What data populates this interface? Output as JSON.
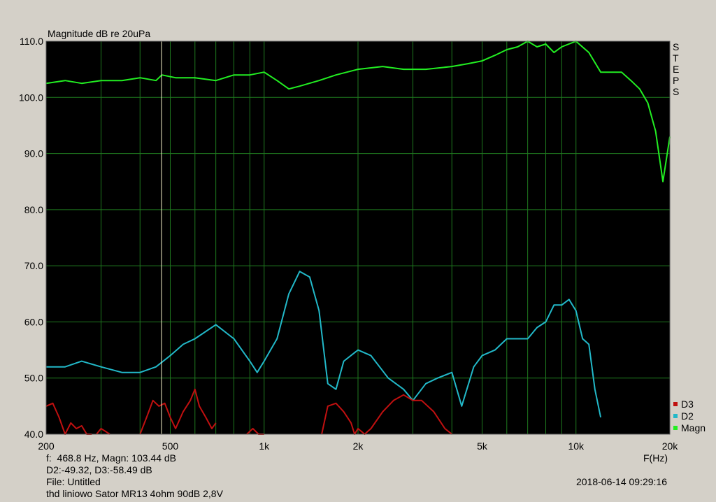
{
  "chart_data": {
    "type": "line",
    "title": "Magnitude dB re 20uPa",
    "xlabel": "F(Hz)",
    "x_scale": "log",
    "xlim": [
      200,
      20000
    ],
    "ylim": [
      40,
      110
    ],
    "x_ticks": [
      200,
      500,
      1000,
      2000,
      5000,
      10000,
      20000
    ],
    "x_tick_labels": [
      "200",
      "500",
      "1k",
      "2k",
      "5k",
      "10k",
      "20k"
    ],
    "y_ticks": [
      40,
      50,
      60,
      70,
      80,
      90,
      100,
      110
    ],
    "y_tick_labels": [
      "40.0",
      "50.0",
      "60.0",
      "70.0",
      "80.0",
      "90.0",
      "100.0",
      "110.0"
    ],
    "grid": true,
    "legend_position": "bottom-right",
    "cursor_x": 468.8,
    "series": [
      {
        "name": "Magn",
        "color": "#22ee22",
        "x": [
          200,
          230,
          260,
          300,
          350,
          400,
          450,
          470,
          520,
          600,
          700,
          800,
          900,
          1000,
          1100,
          1200,
          1300,
          1500,
          1700,
          2000,
          2400,
          2800,
          3300,
          4000,
          4500,
          5000,
          5500,
          6000,
          6500,
          7000,
          7500,
          8000,
          8500,
          9000,
          10000,
          11000,
          12000,
          13000,
          14000,
          15000,
          16000,
          17000,
          18000,
          19000,
          20000
        ],
        "y": [
          102.5,
          103,
          102.5,
          103,
          103,
          103.5,
          103,
          104,
          103.5,
          103.5,
          103,
          104,
          104,
          104.5,
          103,
          101.5,
          102,
          103,
          104,
          105,
          105.5,
          105,
          105,
          105.5,
          106,
          106.5,
          107.5,
          108.5,
          109,
          110,
          109,
          109.5,
          108,
          109,
          110,
          108,
          104.5,
          104.5,
          104.5,
          103,
          101.5,
          99,
          94,
          85,
          93
        ]
      },
      {
        "name": "D2",
        "color": "#22b8c8",
        "x": [
          200,
          230,
          260,
          300,
          350,
          400,
          450,
          500,
          550,
          600,
          700,
          800,
          900,
          950,
          1000,
          1100,
          1200,
          1300,
          1400,
          1500,
          1600,
          1700,
          1800,
          2000,
          2200,
          2500,
          2800,
          3000,
          3300,
          3600,
          4000,
          4300,
          4700,
          5000,
          5500,
          6000,
          6500,
          7000,
          7500,
          8000,
          8500,
          9000,
          9500,
          10000,
          10500,
          11000,
          11500,
          12000
        ],
        "y": [
          52,
          52,
          53,
          52,
          51,
          51,
          52,
          54,
          56,
          57,
          59.5,
          57,
          53,
          51,
          53,
          57,
          65,
          69,
          68,
          62,
          49,
          48,
          53,
          55,
          54,
          50,
          48,
          46,
          49,
          50,
          51,
          45,
          52,
          54,
          55,
          57,
          57,
          57,
          59,
          60,
          63,
          63,
          64,
          62,
          57,
          56,
          48,
          43
        ]
      },
      {
        "name": "D3",
        "color": "#c01010",
        "segments": [
          {
            "x": [
              200,
              210,
              220,
              230,
              240,
              250,
              260,
              270,
              280
            ],
            "y": [
              45,
              45.5,
              43,
              40,
              42,
              41,
              41.5,
              40,
              40
            ]
          },
          {
            "x": [
              290,
              300,
              310,
              320
            ],
            "y": [
              40,
              41,
              40.5,
              40
            ]
          },
          {
            "x": [
              400,
              420,
              440,
              460,
              480,
              500,
              520,
              550,
              580,
              600,
              620,
              650,
              680,
              700
            ],
            "y": [
              40,
              43,
              46,
              45,
              45.5,
              43,
              41,
              44,
              46,
              48,
              45,
              43,
              41,
              42
            ]
          },
          {
            "x": [
              880,
              920,
              960,
              1000
            ],
            "y": [
              40,
              41,
              40,
              40
            ]
          },
          {
            "x": [
              1530,
              1600,
              1700,
              1800,
              1900,
              1950,
              2000,
              2100,
              2200,
              2400,
              2600,
              2800,
              3000,
              3200,
              3500,
              3800,
              4000
            ],
            "y": [
              40,
              45,
              45.5,
              44,
              42,
              40,
              41,
              40,
              41,
              44,
              46,
              47,
              46,
              46,
              44,
              41,
              40
            ]
          }
        ]
      }
    ],
    "readout": {
      "freq_line": "f:  468.8 Hz, Magn: 103.44 dB",
      "dist_line": "D2:-49.32, D3:-58.49 dB",
      "file_line": "File: Untitled",
      "desc_line": "thd liniowo Sator MR13 4ohm 90dB 2,8V",
      "timestamp": "2018-06-14 09:29:16"
    },
    "side_label": [
      "S",
      "T",
      "E",
      "P",
      "S"
    ]
  }
}
